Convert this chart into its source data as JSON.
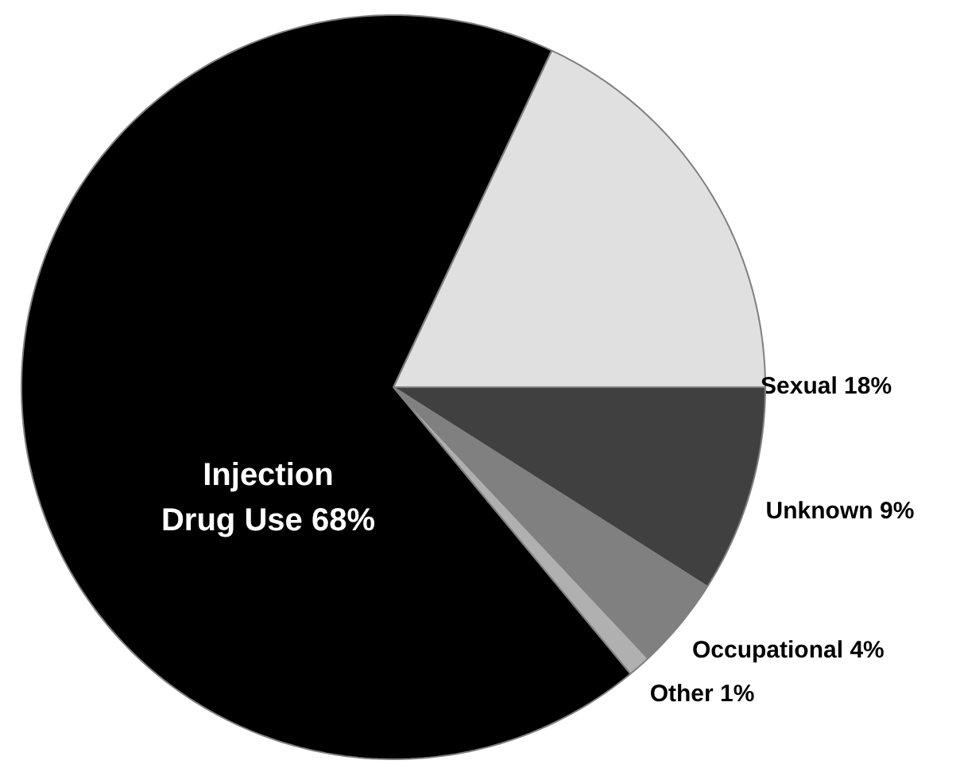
{
  "chart_data": {
    "type": "pie",
    "categories": [
      "Sexual",
      "Unknown",
      "Occupational",
      "Other",
      "Injection\nDrug Use"
    ],
    "values": [
      18,
      9,
      4,
      1,
      68
    ],
    "value_labels": [
      "18%",
      "9%",
      "4%",
      "1%",
      "68%"
    ],
    "colors": [
      "#e0e0e0",
      "#404040",
      "#808080",
      "#b0b0b0",
      "#000000"
    ]
  }
}
